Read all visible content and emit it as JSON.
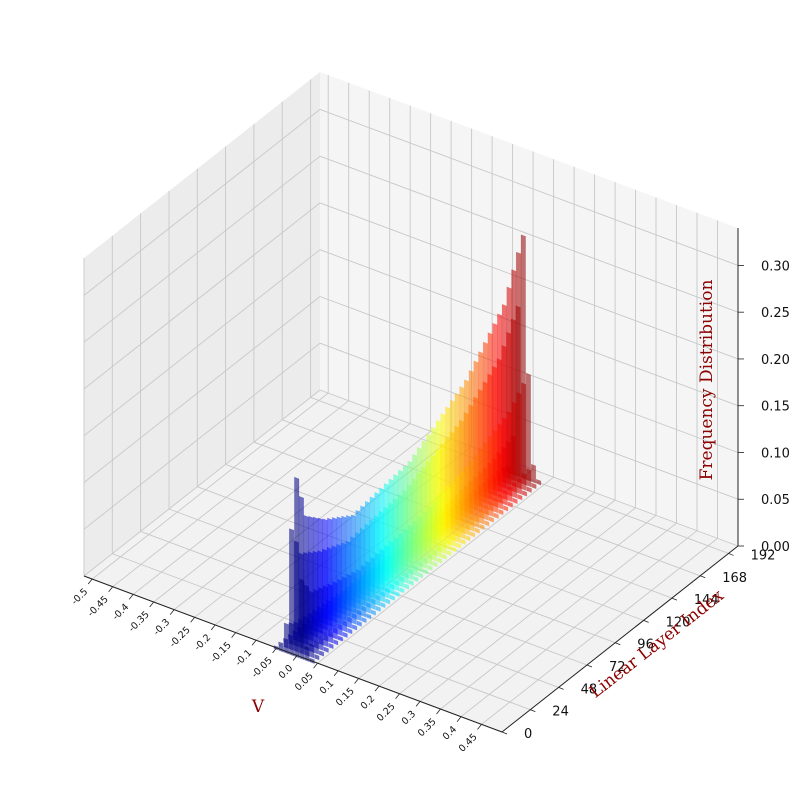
{
  "chart_data": {
    "type": "bar3d",
    "title": "",
    "xlabel": "V",
    "ylabel": "Linear Layer Index",
    "zlabel": "Frequency Distribution",
    "xlim": [
      -0.52,
      0.5
    ],
    "ylim": [
      0,
      200
    ],
    "zlim": [
      0,
      0.34
    ],
    "xticks": [
      "-0.5",
      "-0.45",
      "-0.4",
      "-0.35",
      "-0.3",
      "-0.25",
      "-0.2",
      "-0.15",
      "-0.1",
      "-0.05",
      "0.0",
      "0.05",
      "0.1",
      "0.15",
      "0.2",
      "0.25",
      "0.3",
      "0.35",
      "0.4",
      "0.45"
    ],
    "xtick_values": [
      -0.5,
      -0.45,
      -0.4,
      -0.35,
      -0.3,
      -0.25,
      -0.2,
      -0.15,
      -0.1,
      -0.05,
      0.0,
      0.05,
      0.1,
      0.15,
      0.2,
      0.25,
      0.3,
      0.35,
      0.4,
      0.45
    ],
    "yticks": [
      "0",
      "24",
      "48",
      "72",
      "96",
      "120",
      "144",
      "168",
      "192"
    ],
    "ytick_values": [
      0,
      24,
      48,
      72,
      96,
      120,
      144,
      168,
      192
    ],
    "zticks": [
      "0.00",
      "0.05",
      "0.10",
      "0.15",
      "0.20",
      "0.25",
      "0.30"
    ],
    "ztick_values": [
      0,
      0.05,
      0.1,
      0.15,
      0.2,
      0.25,
      0.3
    ],
    "grid": true,
    "colormap": "jet",
    "label_color": "#8b0000",
    "layers": [
      {
        "layer": 0,
        "peak": 0.19
      },
      {
        "layer": 8,
        "peak": 0.14
      },
      {
        "layer": 16,
        "peak": 0.13
      },
      {
        "layer": 24,
        "peak": 0.12
      },
      {
        "layer": 48,
        "peak": 0.1
      },
      {
        "layer": 96,
        "peak": 0.11
      },
      {
        "layer": 144,
        "peak": 0.15
      },
      {
        "layer": 176,
        "peak": 0.2
      },
      {
        "layer": 192,
        "peak": 0.26
      }
    ]
  }
}
